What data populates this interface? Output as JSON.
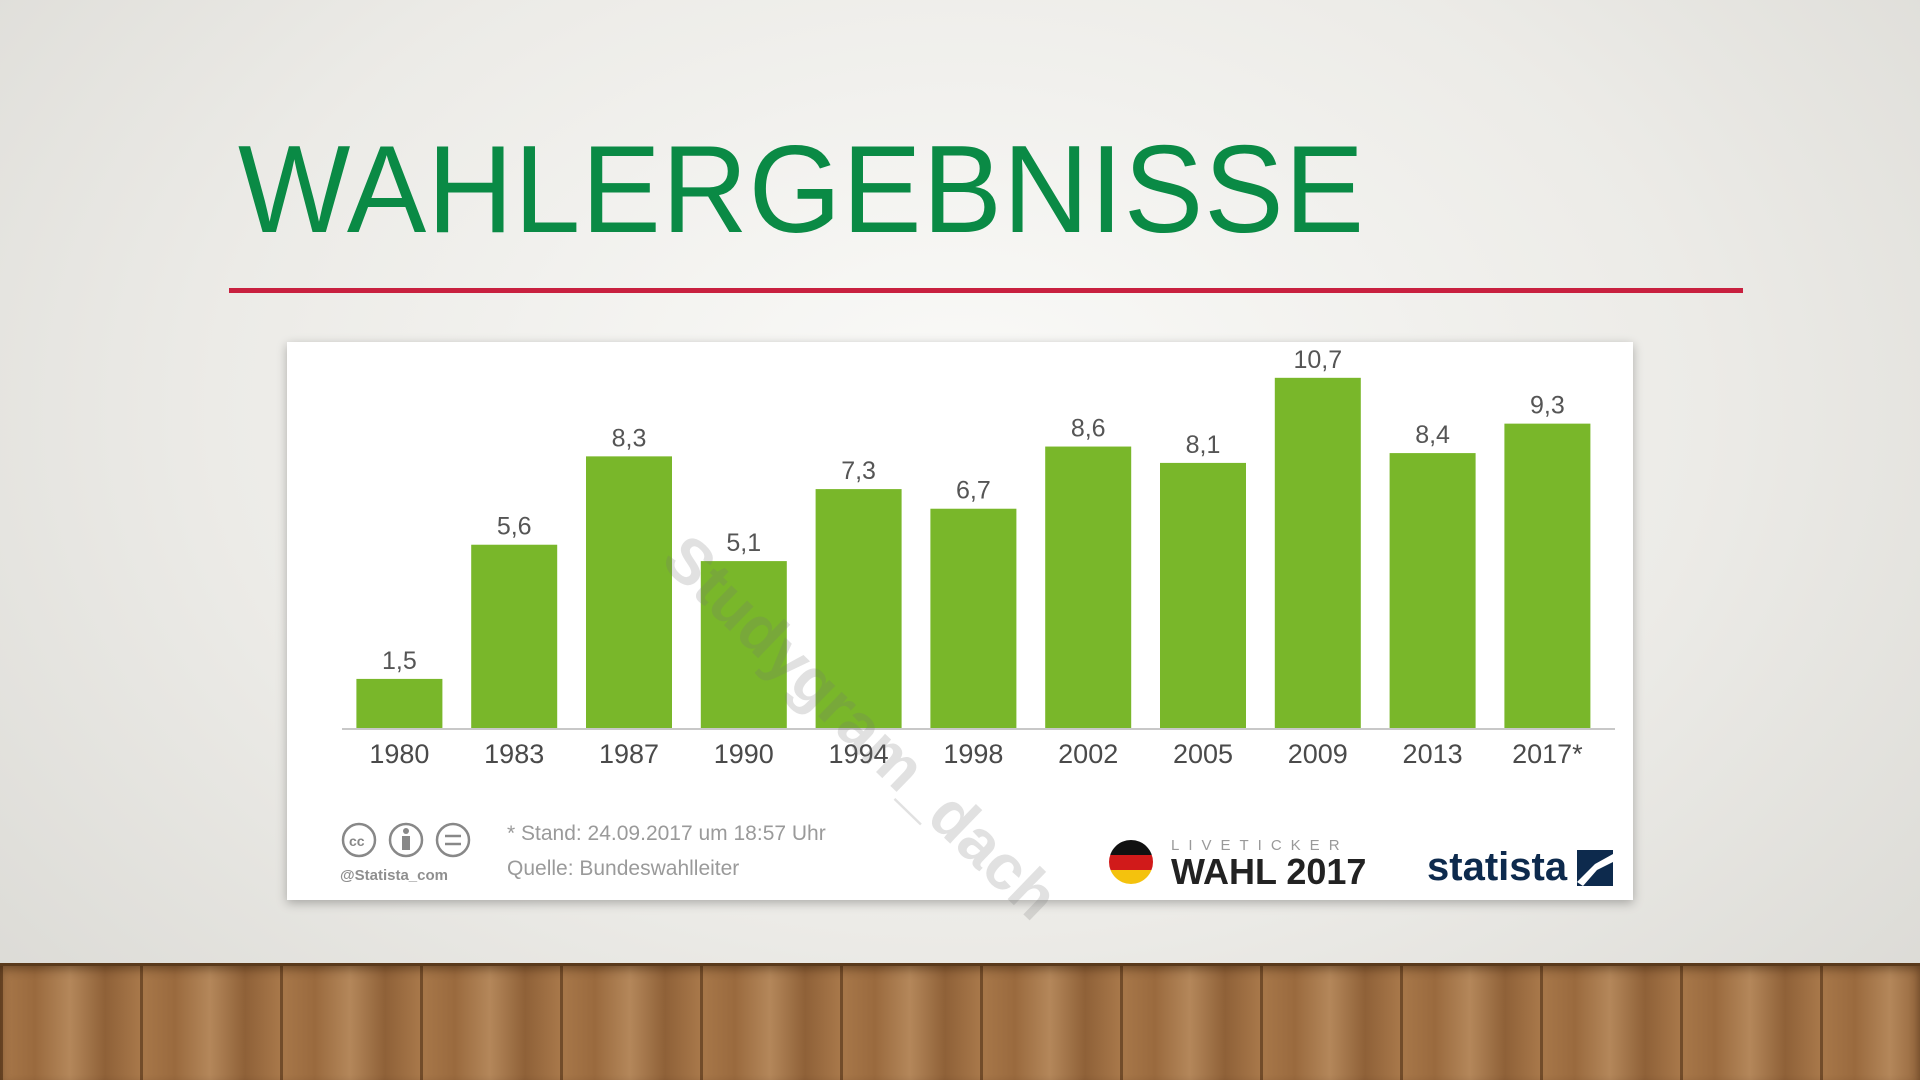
{
  "slide": {
    "title": "WAHLERGEBNISSE",
    "title_color": "#0a8a45",
    "rule_color": "#c8203f",
    "watermark": "Studygram_dach"
  },
  "chart_data": {
    "type": "bar",
    "categories": [
      "1980",
      "1983",
      "1987",
      "1990",
      "1994",
      "1998",
      "2002",
      "2005",
      "2009",
      "2013",
      "2017*"
    ],
    "values": [
      1.5,
      5.6,
      8.3,
      5.1,
      7.3,
      6.7,
      8.6,
      8.1,
      10.7,
      8.4,
      9.3
    ],
    "value_labels": [
      "1,5",
      "5,6",
      "8,3",
      "5,1",
      "7,3",
      "6,7",
      "8,6",
      "8,1",
      "10,7",
      "8,4",
      "9,3"
    ],
    "title": "",
    "xlabel": "",
    "ylabel": "",
    "ylim": [
      0,
      11
    ],
    "grid": false,
    "bar_color": "#79b72a"
  },
  "footer": {
    "note": "* Stand: 24.09.2017 um 18:57 Uhr",
    "source": "Quelle: Bundeswahlleiter",
    "cc_handle": "@Statista_com",
    "liveticker": "LIVETICKER",
    "wahl": "WAHL 2017",
    "statista": "statista"
  }
}
